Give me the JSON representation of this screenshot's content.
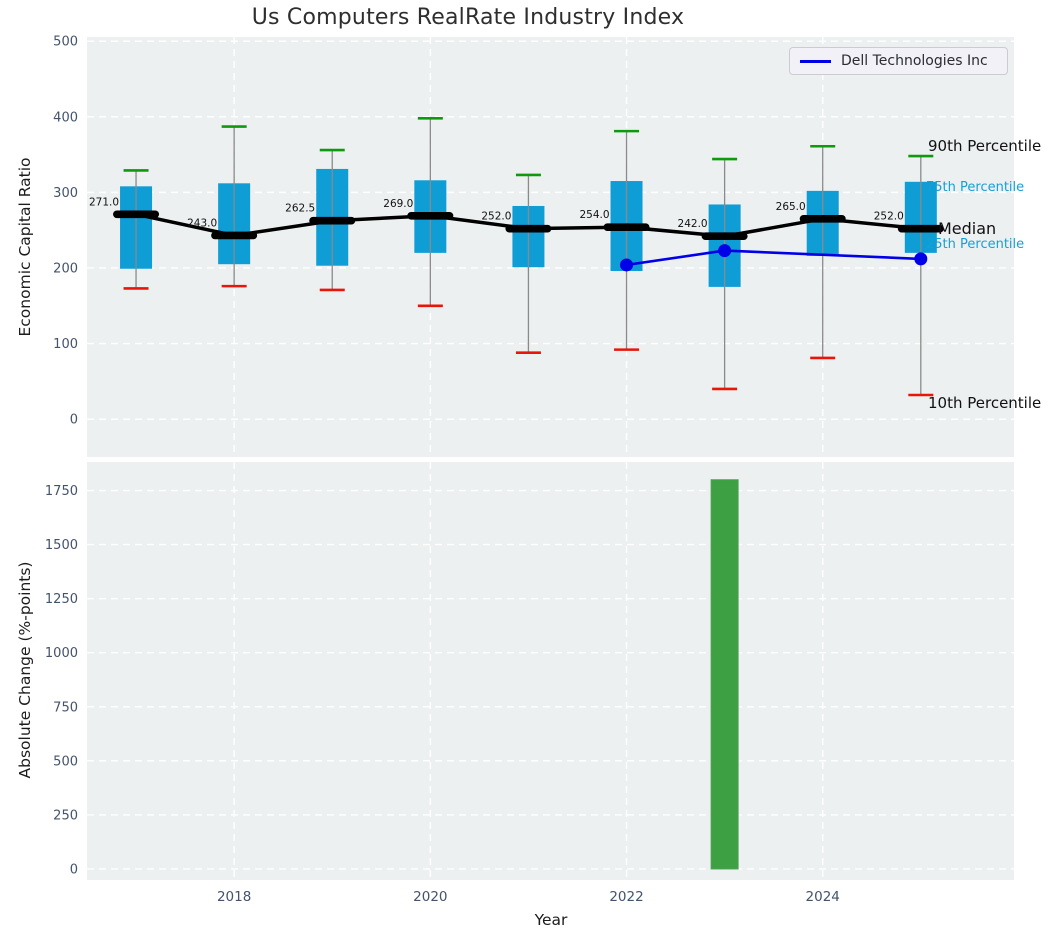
{
  "title": "Us Computers RealRate Industry Index",
  "colors": {
    "axes_background": "#edf0f1",
    "grid": "#ffffff",
    "box_fill": "#0f9dd6",
    "whisker": "#8a8a8a",
    "cap_90th_green": "#0d9a0d",
    "cap_10th_red": "#ea1508",
    "median_black": "#000000",
    "dell_blue": "#0000e8",
    "bar_green": "#3da043",
    "bar_green_edge": "#4da351",
    "tick_label": "#43536b",
    "annotation_cyan": "#17a0d4",
    "text": "#1c1c1c"
  },
  "chart_data": [
    {
      "type": "boxplot",
      "title": "Us Computers RealRate Industry Index",
      "ylabel": "Economic Capital Ratio",
      "xlabel": "",
      "years": [
        2017,
        2018,
        2019,
        2020,
        2021,
        2022,
        2023,
        2024,
        2025
      ],
      "boxes": [
        {
          "year": 2017,
          "p10": 173,
          "p25": 199,
          "median": 271.0,
          "p75": 308,
          "p90": 329,
          "median_label": "271.0"
        },
        {
          "year": 2018,
          "p10": 176,
          "p25": 205,
          "median": 243.0,
          "p75": 312,
          "p90": 387,
          "median_label": "243.0"
        },
        {
          "year": 2019,
          "p10": 171,
          "p25": 203,
          "median": 262.5,
          "p75": 331,
          "p90": 356,
          "median_label": "262.5"
        },
        {
          "year": 2020,
          "p10": 150,
          "p25": 220,
          "median": 269.0,
          "p75": 316,
          "p90": 398,
          "median_label": "269.0"
        },
        {
          "year": 2021,
          "p10": 88,
          "p25": 201,
          "median": 252.0,
          "p75": 282,
          "p90": 323,
          "median_label": "252.0"
        },
        {
          "year": 2022,
          "p10": 92,
          "p25": 196,
          "median": 254.0,
          "p75": 315,
          "p90": 381,
          "median_label": "254.0"
        },
        {
          "year": 2023,
          "p10": 40,
          "p25": 175,
          "median": 242.0,
          "p75": 284,
          "p90": 344,
          "median_label": "242.0"
        },
        {
          "year": 2024,
          "p10": 81,
          "p25": 216,
          "median": 265.0,
          "p75": 302,
          "p90": 361,
          "median_label": "265.0"
        },
        {
          "year": 2025,
          "p10": 32,
          "p25": 220,
          "median": 252.0,
          "p75": 314,
          "p90": 348,
          "median_label": "252.0"
        }
      ],
      "overlay_line": {
        "name": "Dell Technologies Inc",
        "x": [
          2022,
          2023,
          2025
        ],
        "y": [
          204,
          223,
          212
        ]
      },
      "annotations": {
        "p90": "90th Percentile",
        "p75": "75th Percentile",
        "median": "Median",
        "p25": "25th Percentile",
        "p10": "10th Percentile"
      },
      "xticks": [
        "2018",
        "2020",
        "2022",
        "2024"
      ],
      "xtick_values": [
        2018,
        2020,
        2022,
        2024
      ],
      "yticks": [
        0,
        100,
        200,
        300,
        400,
        500
      ],
      "xlim": [
        2016.5,
        2025.95
      ],
      "ylim": [
        -50,
        505.5
      ],
      "grid": "dashed white, horizontal and vertical",
      "legend_position": "upper right"
    },
    {
      "type": "bar",
      "ylabel": "Absolute Change (%-points)",
      "xlabel": "Year",
      "categories": [
        2023
      ],
      "values": [
        1800
      ],
      "xticks": [
        "2018",
        "2020",
        "2022",
        "2024"
      ],
      "xtick_values": [
        2018,
        2020,
        2022,
        2024
      ],
      "yticks": [
        0,
        250,
        500,
        750,
        1000,
        1250,
        1500,
        1750
      ],
      "xlim": [
        2016.5,
        2025.95
      ],
      "ylim": [
        -51,
        1882
      ],
      "grid": "dashed white, horizontal and vertical"
    }
  ]
}
